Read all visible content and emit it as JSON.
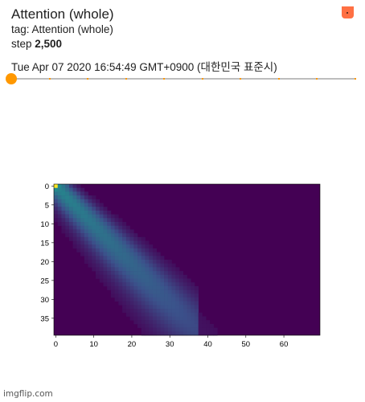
{
  "card": {
    "title": "Attention (whole)",
    "tag_line": "tag: Attention (whole)",
    "step_label": "step ",
    "step_value": "2,500",
    "timestamp": "Tue Apr 07 2020 16:54:49 GMT+0900 (대한민국 표준시)"
  },
  "slider": {
    "value_fraction": 0.0,
    "accent": "#ff9800",
    "tick_count": 10
  },
  "chart_data": {
    "type": "heatmap",
    "x_ticks": [
      "0",
      "10",
      "20",
      "30",
      "40",
      "50",
      "60"
    ],
    "y_ticks": [
      "0",
      "5",
      "10",
      "15",
      "20",
      "25",
      "30",
      "35"
    ],
    "xlim": [
      0,
      70
    ],
    "ylim": [
      0,
      40
    ],
    "cols": 70,
    "rows": 40,
    "colormap": "viridis",
    "band": "diagonal attention band from (0,0) toward about x=37, y=40",
    "background_color": "#440154"
  },
  "watermark": "imgflip.com",
  "icons": {
    "menu": "dots-vertical-icon"
  }
}
